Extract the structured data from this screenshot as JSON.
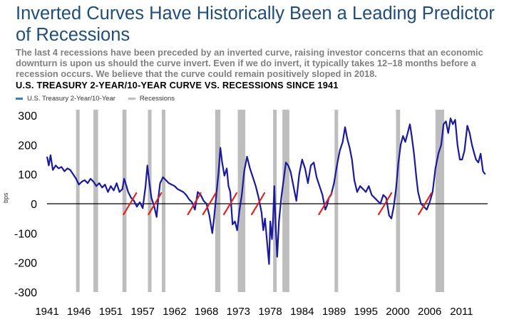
{
  "header": {
    "title": "Inverted Curves Have Historically Been a Leading Predictor of Recessions",
    "subtitle": "The last 4 recessions have been preceded by an inverted curve, raising investor concerns that an economic downturn is upon us should the curve invert. Even if we do invert, it typically takes 12–18 months before a recession occurs. We believe that the curve could remain positively sloped in 2018.",
    "chart_heading": "U.S. TREASURY 2-YEAR/10-YEAR CURVE VS. RECESSIONS SINCE 1941"
  },
  "legend": {
    "series_label": "U.S. Treasury 2-Year/10-Year",
    "recession_label": "Recessions"
  },
  "colors": {
    "series": "#1a1a9c",
    "legend_series": "#2e86c1",
    "recession": "#bdbdbd",
    "inversion_mark": "#e3211c"
  },
  "chart_data": {
    "type": "line",
    "title": "U.S. TREASURY 2-YEAR/10-YEAR CURVE VS. RECESSIONS SINCE 1941",
    "xlabel": "",
    "ylabel": "bps",
    "xlim": [
      1941,
      2017
    ],
    "ylim": [
      -300,
      300
    ],
    "x_ticks": [
      "1941",
      "1946",
      "1951",
      "1957",
      "1962",
      "1968",
      "1973",
      "1978",
      "1984",
      "1989",
      "1995",
      "2000",
      "2006",
      "2011"
    ],
    "y_ticks": [
      "300",
      "200",
      "100",
      "0",
      "-100",
      "-200",
      "-300"
    ],
    "x_tick_values": [
      1941,
      1946.5,
      1952,
      1957.5,
      1963,
      1968.5,
      1974,
      1979.5,
      1985,
      1990.5,
      1996,
      2001.5,
      2007,
      2012.5
    ],
    "y_tick_values": [
      300,
      200,
      100,
      0,
      -100,
      -200,
      -300
    ],
    "recessions": [
      [
        1946.0,
        1946.6
      ],
      [
        1949.0,
        1949.8
      ],
      [
        1954.0,
        1954.7
      ],
      [
        1958.4,
        1959.0
      ],
      [
        1960.8,
        1961.4
      ],
      [
        1970.0,
        1970.9
      ],
      [
        1973.9,
        1975.2
      ],
      [
        1980.0,
        1980.5
      ],
      [
        1981.6,
        1982.8
      ],
      [
        1990.6,
        1991.2
      ],
      [
        2001.2,
        2001.9
      ],
      [
        2008.0,
        2009.5
      ]
    ],
    "inversion_markers": [
      1955.3,
      1959.6,
      1966.4,
      1969.0,
      1972.6,
      1977.4,
      1989.0,
      1999.3,
      2006.2
    ],
    "series": [
      {
        "name": "U.S. Treasury 2-Year/10-Year",
        "points": [
          [
            1941.0,
            160
          ],
          [
            1941.3,
            130
          ],
          [
            1941.6,
            165
          ],
          [
            1942.0,
            115
          ],
          [
            1942.5,
            130
          ],
          [
            1943.0,
            120
          ],
          [
            1943.5,
            125
          ],
          [
            1944.0,
            110
          ],
          [
            1944.5,
            120
          ],
          [
            1945.0,
            115
          ],
          [
            1945.5,
            100
          ],
          [
            1946.0,
            85
          ],
          [
            1946.5,
            65
          ],
          [
            1947.0,
            75
          ],
          [
            1947.5,
            80
          ],
          [
            1948.0,
            70
          ],
          [
            1948.5,
            85
          ],
          [
            1949.0,
            75
          ],
          [
            1949.5,
            60
          ],
          [
            1950.0,
            70
          ],
          [
            1950.5,
            55
          ],
          [
            1951.0,
            65
          ],
          [
            1951.5,
            40
          ],
          [
            1952.0,
            60
          ],
          [
            1952.5,
            45
          ],
          [
            1953.0,
            70
          ],
          [
            1953.5,
            40
          ],
          [
            1954.0,
            50
          ],
          [
            1954.3,
            85
          ],
          [
            1954.7,
            60
          ],
          [
            1955.0,
            40
          ],
          [
            1955.5,
            20
          ],
          [
            1956.0,
            10
          ],
          [
            1956.5,
            -10
          ],
          [
            1957.0,
            5
          ],
          [
            1957.5,
            -15
          ],
          [
            1958.0,
            60
          ],
          [
            1958.3,
            130
          ],
          [
            1958.6,
            80
          ],
          [
            1959.0,
            20
          ],
          [
            1959.5,
            -10
          ],
          [
            1959.9,
            -45
          ],
          [
            1960.2,
            20
          ],
          [
            1960.5,
            70
          ],
          [
            1961.0,
            90
          ],
          [
            1961.5,
            80
          ],
          [
            1962.0,
            70
          ],
          [
            1962.5,
            65
          ],
          [
            1963.0,
            60
          ],
          [
            1963.5,
            50
          ],
          [
            1964.0,
            45
          ],
          [
            1964.5,
            40
          ],
          [
            1965.0,
            30
          ],
          [
            1965.5,
            15
          ],
          [
            1966.0,
            5
          ],
          [
            1966.5,
            -20
          ],
          [
            1967.0,
            40
          ],
          [
            1967.5,
            30
          ],
          [
            1968.0,
            10
          ],
          [
            1968.5,
            0
          ],
          [
            1969.0,
            -40
          ],
          [
            1969.5,
            -100
          ],
          [
            1969.8,
            -50
          ],
          [
            1970.2,
            30
          ],
          [
            1970.6,
            110
          ],
          [
            1970.9,
            190
          ],
          [
            1971.2,
            140
          ],
          [
            1971.6,
            95
          ],
          [
            1972.0,
            120
          ],
          [
            1972.3,
            60
          ],
          [
            1972.6,
            40
          ],
          [
            1973.0,
            -70
          ],
          [
            1973.4,
            -60
          ],
          [
            1973.8,
            -90
          ],
          [
            1974.2,
            -20
          ],
          [
            1974.6,
            30
          ],
          [
            1975.0,
            110
          ],
          [
            1975.5,
            160
          ],
          [
            1976.0,
            120
          ],
          [
            1976.5,
            90
          ],
          [
            1977.0,
            60
          ],
          [
            1977.5,
            20
          ],
          [
            1978.0,
            -30
          ],
          [
            1978.3,
            -90
          ],
          [
            1978.6,
            -50
          ],
          [
            1979.0,
            -140
          ],
          [
            1979.3,
            -205
          ],
          [
            1979.5,
            -60
          ],
          [
            1979.8,
            -120
          ],
          [
            1980.0,
            -50
          ],
          [
            1980.2,
            60
          ],
          [
            1980.4,
            -60
          ],
          [
            1980.7,
            -180
          ],
          [
            1981.0,
            -60
          ],
          [
            1981.4,
            20
          ],
          [
            1981.8,
            80
          ],
          [
            1982.2,
            140
          ],
          [
            1982.6,
            130
          ],
          [
            1983.0,
            110
          ],
          [
            1983.5,
            60
          ],
          [
            1984.0,
            10
          ],
          [
            1984.5,
            100
          ],
          [
            1985.0,
            150
          ],
          [
            1985.5,
            120
          ],
          [
            1986.0,
            70
          ],
          [
            1986.5,
            130
          ],
          [
            1987.0,
            140
          ],
          [
            1987.5,
            90
          ],
          [
            1988.0,
            60
          ],
          [
            1988.5,
            30
          ],
          [
            1989.0,
            -20
          ],
          [
            1989.3,
            -5
          ],
          [
            1989.6,
            20
          ],
          [
            1990.0,
            30
          ],
          [
            1990.5,
            70
          ],
          [
            1991.0,
            130
          ],
          [
            1991.5,
            180
          ],
          [
            1992.0,
            210
          ],
          [
            1992.4,
            260
          ],
          [
            1992.8,
            220
          ],
          [
            1993.2,
            190
          ],
          [
            1993.6,
            150
          ],
          [
            1994.0,
            80
          ],
          [
            1994.5,
            40
          ],
          [
            1995.0,
            60
          ],
          [
            1995.5,
            50
          ],
          [
            1996.0,
            40
          ],
          [
            1996.5,
            60
          ],
          [
            1997.0,
            30
          ],
          [
            1997.5,
            20
          ],
          [
            1998.0,
            10
          ],
          [
            1998.5,
            0
          ],
          [
            1999.0,
            30
          ],
          [
            1999.5,
            20
          ],
          [
            2000.0,
            -40
          ],
          [
            2000.4,
            -50
          ],
          [
            2000.8,
            -10
          ],
          [
            2001.2,
            50
          ],
          [
            2001.6,
            140
          ],
          [
            2002.0,
            200
          ],
          [
            2002.4,
            230
          ],
          [
            2002.8,
            210
          ],
          [
            2003.2,
            240
          ],
          [
            2003.6,
            270
          ],
          [
            2003.9,
            230
          ],
          [
            2004.3,
            170
          ],
          [
            2004.7,
            90
          ],
          [
            2005.0,
            40
          ],
          [
            2005.5,
            0
          ],
          [
            2006.0,
            -10
          ],
          [
            2006.5,
            -20
          ],
          [
            2007.0,
            5
          ],
          [
            2007.5,
            40
          ],
          [
            2008.0,
            120
          ],
          [
            2008.5,
            170
          ],
          [
            2009.0,
            200
          ],
          [
            2009.4,
            270
          ],
          [
            2009.8,
            280
          ],
          [
            2010.2,
            240
          ],
          [
            2010.6,
            290
          ],
          [
            2011.0,
            270
          ],
          [
            2011.4,
            285
          ],
          [
            2011.8,
            200
          ],
          [
            2012.2,
            150
          ],
          [
            2012.6,
            150
          ],
          [
            2013.0,
            180
          ],
          [
            2013.5,
            265
          ],
          [
            2013.9,
            240
          ],
          [
            2014.3,
            200
          ],
          [
            2014.7,
            170
          ],
          [
            2015.0,
            150
          ],
          [
            2015.4,
            140
          ],
          [
            2015.8,
            170
          ],
          [
            2016.2,
            110
          ],
          [
            2016.6,
            100
          ]
        ]
      }
    ]
  }
}
